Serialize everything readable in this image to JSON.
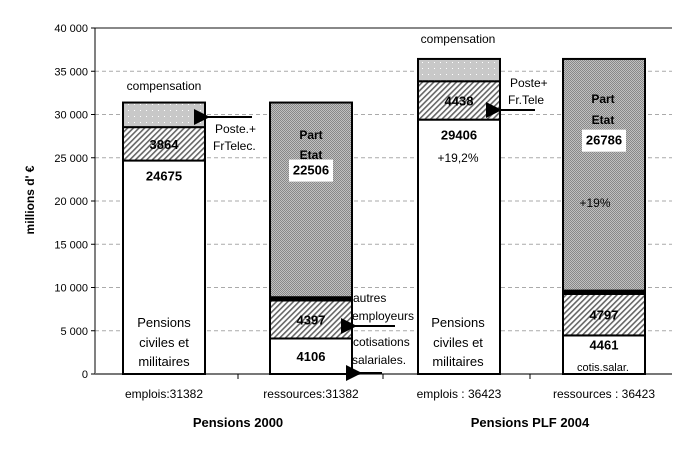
{
  "chart_data": {
    "type": "bar",
    "stacked": true,
    "ylabel": "millions d' €",
    "ylim": [
      0,
      40000
    ],
    "yticks": [
      "0",
      "5 000",
      "10 000",
      "15 000",
      "20 000",
      "25 000",
      "30 000",
      "35 000",
      "40 000"
    ],
    "grid": true,
    "categories": [
      "emplois:31382",
      "ressources:31382",
      "emplois : 36423",
      "ressources : 36423"
    ],
    "groups": [
      {
        "label": "Pensions 2000"
      },
      {
        "label": "Pensions PLF 2004"
      }
    ],
    "bars": [
      {
        "segments": [
          {
            "name": "Pensions civiles et militaires",
            "value": 24675,
            "pattern": "white",
            "label": "24675"
          },
          {
            "name": "Poste + FrTelec",
            "value": 3864,
            "pattern": "hatch",
            "label": "3864"
          },
          {
            "name": "compensation",
            "value": 2843,
            "pattern": "dots",
            "label": ""
          }
        ]
      },
      {
        "segments": [
          {
            "name": "cotisations salariales",
            "value": 4106,
            "pattern": "white",
            "label": "4106"
          },
          {
            "name": "autres employeurs",
            "value": 4397,
            "pattern": "hatch",
            "label": "4397"
          },
          {
            "name": "autres",
            "value": 373,
            "pattern": "black",
            "label": ""
          },
          {
            "name": "Part Etat",
            "value": 22506,
            "pattern": "dense",
            "label": "22506"
          }
        ]
      },
      {
        "segments": [
          {
            "name": "Pensions civiles et militaires",
            "value": 29406,
            "pattern": "white",
            "label": "29406"
          },
          {
            "name": "Poste + Fr.Tele",
            "value": 4438,
            "pattern": "hatch",
            "label": "4438"
          },
          {
            "name": "compensation",
            "value": 2579,
            "pattern": "dots",
            "label": ""
          }
        ]
      },
      {
        "segments": [
          {
            "name": "cotis.salar.",
            "value": 4461,
            "pattern": "white",
            "label": "4461"
          },
          {
            "name": "autres employeurs",
            "value": 4797,
            "pattern": "hatch",
            "label": "4797"
          },
          {
            "name": "autres",
            "value": 379,
            "pattern": "black",
            "label": ""
          },
          {
            "name": "Part Etat",
            "value": 26786,
            "pattern": "dense",
            "label": "26786"
          }
        ]
      }
    ],
    "annotations": {
      "comp1": "compensation",
      "comp2": "compensation",
      "poste1a": "Poste.+",
      "poste1b": "FrTelec.",
      "poste2a": "Poste+",
      "poste2b": "Fr.Tele",
      "part1a": "Part",
      "part1b": "Etat",
      "part2a": "Part",
      "part2b": "Etat",
      "pens1a": "Pensions",
      "pens1b": "civiles et",
      "pens1c": "militaires",
      "pens2a": "Pensions",
      "pens2b": "civiles et",
      "pens2c": "militaires",
      "autres_a": "autres",
      "autres_b": "employeurs",
      "cotis_a": "cotisations",
      "cotis_b": "salariales.",
      "growth1": "+19,2%",
      "growth2": "+19%",
      "cotis_salar": "cotis.salar."
    }
  }
}
